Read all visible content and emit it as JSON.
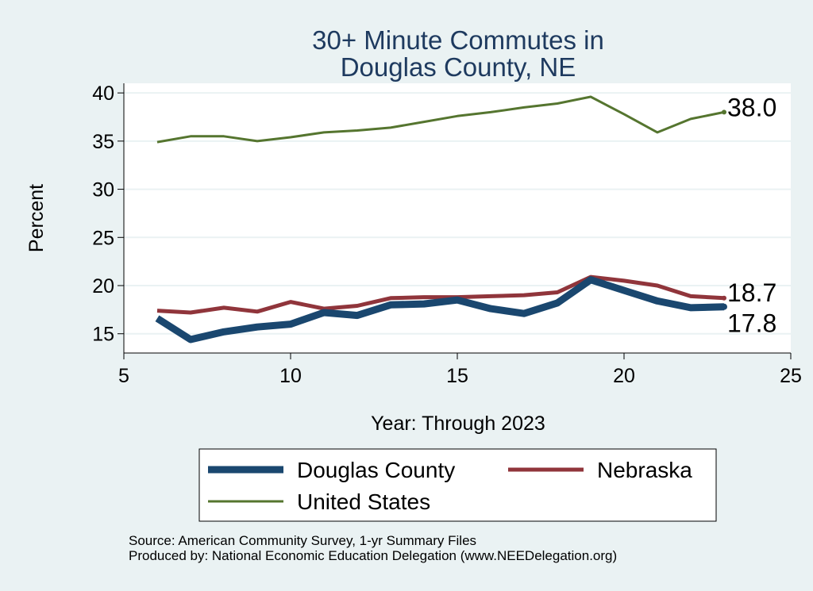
{
  "chart_data": {
    "type": "line",
    "title_lines": [
      "30+ Minute Commutes in",
      "Douglas County, NE"
    ],
    "xlabel": "Year: Through 2023",
    "ylabel": "Percent",
    "xlim": [
      5,
      25
    ],
    "ylim": [
      13,
      41
    ],
    "x_ticks": [
      5,
      10,
      15,
      20,
      25
    ],
    "y_ticks": [
      15,
      20,
      25,
      30,
      35,
      40
    ],
    "grid": true,
    "legend_position": "bottom",
    "x": [
      6,
      7,
      8,
      9,
      10,
      11,
      12,
      13,
      14,
      15,
      16,
      17,
      18,
      19,
      20,
      21,
      22,
      23
    ],
    "series": [
      {
        "name": "Douglas County",
        "color": "#1a476f",
        "values": [
          16.6,
          14.4,
          15.2,
          15.7,
          16.0,
          17.2,
          16.9,
          18.0,
          18.1,
          18.5,
          17.6,
          17.1,
          18.2,
          20.6,
          19.5,
          18.4,
          17.7,
          17.8
        ],
        "end_label": "17.8"
      },
      {
        "name": "Nebraska",
        "color": "#90353b",
        "values": [
          17.4,
          17.2,
          17.7,
          17.3,
          18.3,
          17.6,
          17.9,
          18.7,
          18.8,
          18.8,
          18.9,
          19.0,
          19.3,
          20.9,
          20.5,
          20.0,
          18.9,
          18.7
        ],
        "end_label": "18.7"
      },
      {
        "name": "United States",
        "color": "#55752f",
        "values": [
          34.9,
          35.5,
          35.5,
          35.0,
          35.4,
          35.9,
          36.1,
          36.4,
          37.0,
          37.6,
          38.0,
          38.5,
          38.9,
          39.6,
          37.8,
          35.9,
          37.3,
          38.0
        ],
        "end_label": "38.0"
      }
    ]
  },
  "footer": {
    "source": "Source: American Community Survey, 1-yr Summary Files",
    "produced_by": "Produced by: National Economic Education Delegation (www.NEEDelegation.org)"
  }
}
